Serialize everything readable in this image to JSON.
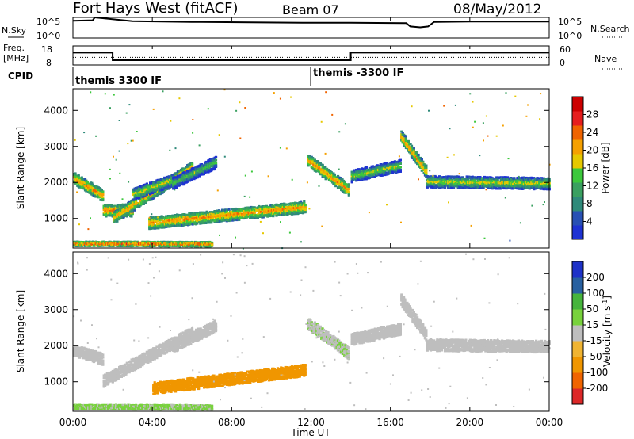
{
  "header": {
    "title": "Fort Hays West (fitACF)",
    "beam": "Beam 07",
    "date": "08/May/2012"
  },
  "colors": {
    "power_scale": [
      "#1e32d2",
      "#2850b4",
      "#2f8a7a",
      "#3aa060",
      "#3cc83c",
      "#e6c800",
      "#f5a000",
      "#f06400",
      "#e61e1e",
      "#cc0000"
    ],
    "velocity_scale": [
      "#1e32c8",
      "#2860a0",
      "#2a8a4a",
      "#46b43c",
      "#78d23c",
      "#bebebe",
      "#f0b432",
      "#f09600",
      "#f06400",
      "#dc2828",
      "#c80000"
    ]
  },
  "chart_data": [
    {
      "type": "line",
      "name": "nsky-nsearch",
      "left_label": [
        "N.Sky",
        "10^5",
        "10^0"
      ],
      "right_label": "N.Search",
      "right_ticks": [
        "10^5",
        "10^0"
      ],
      "x": [
        0,
        1.0,
        1.1,
        3,
        6,
        9,
        12,
        14,
        16.8,
        17.0,
        17.5,
        17.9,
        18.2,
        20,
        24
      ],
      "y_log": [
        4.2,
        4.3,
        5.0,
        4.1,
        3.9,
        3.8,
        3.7,
        3.7,
        3.6,
        2.8,
        2.6,
        2.8,
        3.9,
        4.0,
        4.0
      ],
      "ylim_log": [
        0,
        5
      ]
    },
    {
      "type": "line",
      "name": "freq-nave",
      "left_label": [
        "Freq.",
        "[MHz]"
      ],
      "left_ticks": [
        18,
        8
      ],
      "right_label": "Nave",
      "right_ticks": [
        60,
        0
      ],
      "freq": {
        "x": [
          0,
          2,
          2,
          14,
          14,
          24
        ],
        "y": [
          14.5,
          14.5,
          10.5,
          10.5,
          14.5,
          14.5
        ]
      },
      "nave": {
        "x": [
          0,
          24
        ],
        "y": [
          12,
          12
        ]
      },
      "ylim": [
        8,
        18
      ]
    },
    {
      "type": "table",
      "name": "cpid",
      "label": "CPID",
      "segments": [
        {
          "start": 0,
          "end": 12,
          "label": "themis 3300 IF"
        },
        {
          "start": 12,
          "end": 24,
          "label": "themis -3300 IF"
        }
      ]
    },
    {
      "type": "heatmap",
      "name": "power-panel",
      "ylabel": "Slant Range [km]",
      "yticks": [
        1000,
        2000,
        3000,
        4000
      ],
      "ylim": [
        180,
        4600
      ],
      "xlim": [
        0,
        24
      ],
      "colorbar": {
        "label": "Power [dB]",
        "ticks": [
          4,
          8,
          12,
          16,
          20,
          24,
          28
        ],
        "range": [
          0,
          32
        ]
      },
      "echo_bands": [
        {
          "t0": 0,
          "t1": 1.5,
          "r0": 2150,
          "r1": 1650,
          "v": 15
        },
        {
          "t0": 1.5,
          "t1": 3.0,
          "r0": 1250,
          "r1": 1250,
          "v": 16
        },
        {
          "t0": 2.0,
          "t1": 6.0,
          "r0": 1050,
          "r1": 2450,
          "v": 14
        },
        {
          "t0": 3.0,
          "t1": 5.0,
          "r0": 1700,
          "r1": 2100,
          "v": 10
        },
        {
          "t0": 5.0,
          "t1": 7.2,
          "r0": 2000,
          "r1": 2600,
          "v": 7
        },
        {
          "t0": 3.8,
          "t1": 11.7,
          "r0": 900,
          "r1": 1350,
          "v": 15
        },
        {
          "t0": 11.8,
          "t1": 13.9,
          "r0": 2650,
          "r1": 1800,
          "v": 15
        },
        {
          "t0": 14.0,
          "t1": 16.5,
          "r0": 2200,
          "r1": 2500,
          "v": 9
        },
        {
          "t0": 16.5,
          "t1": 17.8,
          "r0": 3300,
          "r1": 2300,
          "v": 14
        },
        {
          "t0": 17.8,
          "t1": 24.0,
          "r0": 2050,
          "r1": 2000,
          "v": 10
        },
        {
          "t0": 0,
          "t1": 7.0,
          "r0": 330,
          "r1": 320,
          "v": 18
        }
      ]
    },
    {
      "type": "heatmap",
      "name": "velocity-panel",
      "ylabel": "Slant Range [km]",
      "yticks": [
        1000,
        2000,
        3000,
        4000
      ],
      "ylim": [
        180,
        4600
      ],
      "xlim": [
        0,
        24
      ],
      "xlabel": "Time UT",
      "xticks": [
        "00:00",
        "04:00",
        "08:00",
        "12:00",
        "16:00",
        "20:00",
        "00:00"
      ],
      "colorbar": {
        "label": "Velocity [m s^-1]",
        "ticks": [
          200,
          100,
          50,
          15,
          -15,
          -50,
          -100,
          -200
        ]
      },
      "echo_bands": [
        {
          "t0": 0,
          "t1": 1.5,
          "r0": 1900,
          "r1": 1650,
          "v": 0
        },
        {
          "t0": 1.5,
          "t1": 6.0,
          "r0": 1050,
          "r1": 2400,
          "v": 0
        },
        {
          "t0": 5.0,
          "t1": 7.2,
          "r0": 2000,
          "r1": 2600,
          "v": 0
        },
        {
          "t0": 4.0,
          "t1": 11.7,
          "r0": 850,
          "r1": 1350,
          "v": -60
        },
        {
          "t0": 11.8,
          "t1": 13.9,
          "r0": 2650,
          "r1": 1800,
          "v": 10
        },
        {
          "t0": 14.0,
          "t1": 16.5,
          "r0": 2200,
          "r1": 2500,
          "v": 0
        },
        {
          "t0": 16.5,
          "t1": 17.8,
          "r0": 3300,
          "r1": 2300,
          "v": 0
        },
        {
          "t0": 17.8,
          "t1": 24.0,
          "r0": 2050,
          "r1": 2000,
          "v": 0
        },
        {
          "t0": 0,
          "t1": 7.0,
          "r0": 330,
          "r1": 320,
          "v": 20
        }
      ]
    }
  ]
}
